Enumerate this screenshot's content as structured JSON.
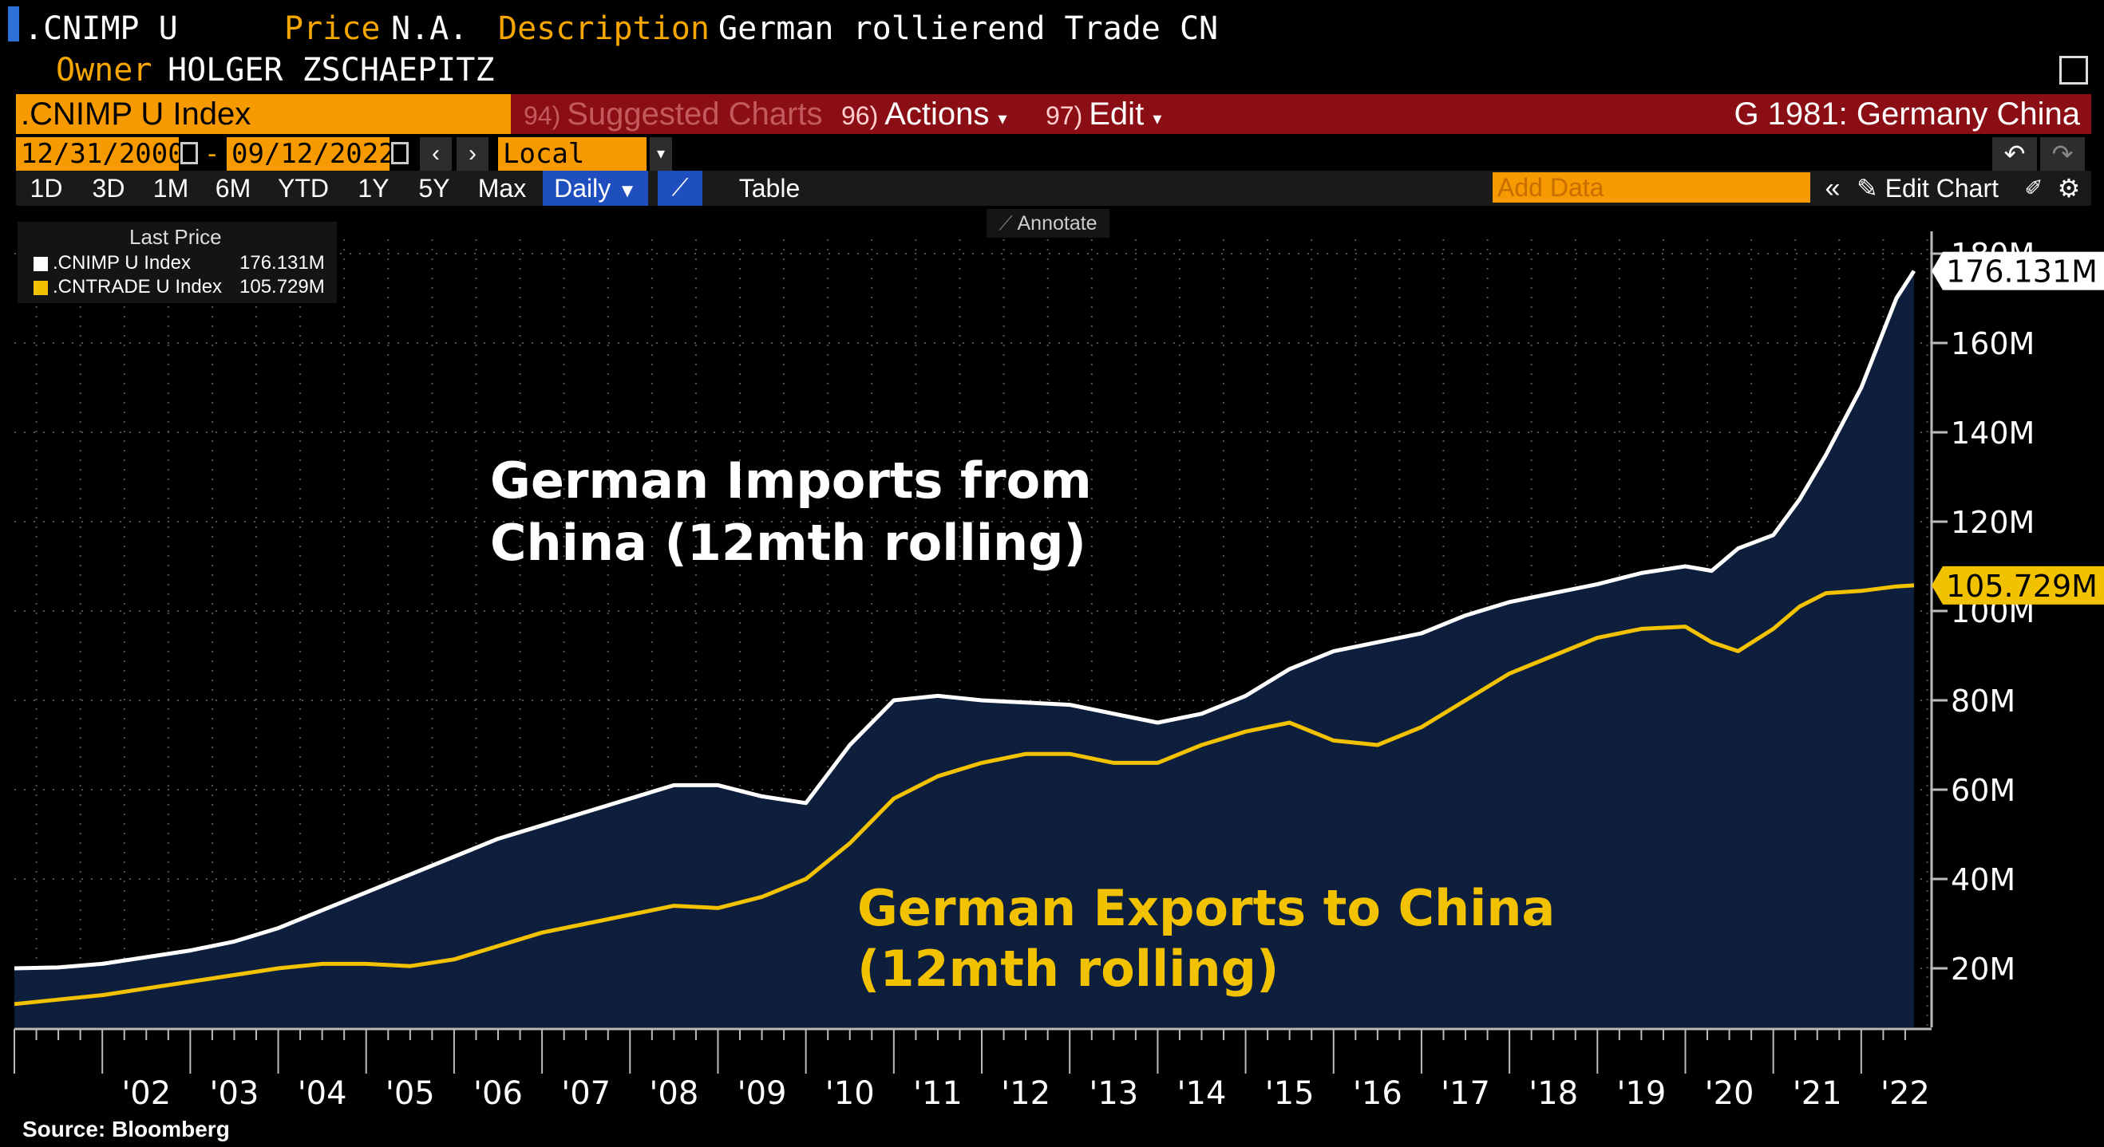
{
  "header": {
    "ticker": ".CNIMP U",
    "price_label": "Price",
    "price_value": "N.A.",
    "description_label": "Description",
    "description_value": "German rollierend Trade CN",
    "owner_label": "Owner",
    "owner_value": "HOLGER ZSCHAEPITZ"
  },
  "toolbar": {
    "security": ".CNIMP U Index",
    "suggested_num": "94)",
    "suggested_label": "Suggested Charts",
    "actions_num": "96)",
    "actions_label": "Actions",
    "edit_num": "97)",
    "edit_label": "Edit",
    "chart_name": "G 1981: Germany China",
    "start_date": "12/31/2000",
    "end_date": "09/12/2022",
    "currency": "Local CCY",
    "add_data_placeholder": "Add Data",
    "edit_chart_label": "Edit Chart",
    "table_label": "Table",
    "annotate_label": "Annotate",
    "periods": [
      "1D",
      "3D",
      "1M",
      "6M",
      "YTD",
      "1Y",
      "5Y",
      "Max"
    ],
    "frequency": "Daily"
  },
  "colors": {
    "accent": "#f79a00",
    "menu_bar": "#8b0e14",
    "area_fill": "#0d1f3c",
    "import_line": "#ffffff",
    "export_line": "#f2c200"
  },
  "legend": {
    "title": "Last Price",
    "items": [
      {
        "name": ".CNIMP U Index",
        "value": "176.131M"
      },
      {
        "name": ".CNTRADE U Index",
        "value": "105.729M"
      }
    ]
  },
  "chart_data": {
    "type": "area",
    "title": "",
    "xlabel": "",
    "ylabel": "",
    "xlim": [
      2001.0,
      2022.8
    ],
    "ylim": [
      0,
      180
    ],
    "y_ticks": [
      20,
      40,
      60,
      80,
      100,
      120,
      140,
      160,
      180
    ],
    "y_tick_labels": [
      "20M",
      "40M",
      "60M",
      "80M",
      "100M",
      "120M",
      "140M",
      "160M",
      "180M"
    ],
    "x_ticks": [
      2002,
      2003,
      2004,
      2005,
      2006,
      2007,
      2008,
      2009,
      2010,
      2011,
      2012,
      2013,
      2014,
      2015,
      2016,
      2017,
      2018,
      2019,
      2020,
      2021,
      2022
    ],
    "x_tick_labels": [
      "'02",
      "'03",
      "'04",
      "'05",
      "'06",
      "'07",
      "'08",
      "'09",
      "'10",
      "'11",
      "'12",
      "'13",
      "'14",
      "'15",
      "'16",
      "'17",
      "'18",
      "'19",
      "'20",
      "'21",
      "'22"
    ],
    "grid": true,
    "source": "Source: Bloomberg",
    "series": [
      {
        "name": ".CNIMP U Index",
        "annotation_line1": "German Imports from",
        "annotation_line2": "China (12mth rolling)",
        "last_label": "176.131M",
        "x": [
          2001.0,
          2001.5,
          2002.0,
          2002.5,
          2003.0,
          2003.5,
          2004.0,
          2004.5,
          2005.0,
          2005.5,
          2006.0,
          2006.5,
          2007.0,
          2007.5,
          2008.0,
          2008.5,
          2009.0,
          2009.5,
          2010.0,
          2010.5,
          2011.0,
          2011.5,
          2012.0,
          2012.5,
          2013.0,
          2013.5,
          2014.0,
          2014.5,
          2015.0,
          2015.5,
          2016.0,
          2016.5,
          2017.0,
          2017.5,
          2018.0,
          2018.5,
          2019.0,
          2019.5,
          2020.0,
          2020.3,
          2020.6,
          2021.0,
          2021.3,
          2021.6,
          2022.0,
          2022.4,
          2022.6
        ],
        "y": [
          20.0,
          20.2,
          21.0,
          22.5,
          24.0,
          26.0,
          29.0,
          33.0,
          37.0,
          41.0,
          45.0,
          49.0,
          52.0,
          55.0,
          58.0,
          61.0,
          61.0,
          58.5,
          57.0,
          70.0,
          80.0,
          81.0,
          80.0,
          79.5,
          79.0,
          77.0,
          75.0,
          77.0,
          81.0,
          87.0,
          91.0,
          93.0,
          95.0,
          99.0,
          102.0,
          104.0,
          106.0,
          108.5,
          110.0,
          109.0,
          114.0,
          117.0,
          125.0,
          135.0,
          150.0,
          170.0,
          176.131
        ]
      },
      {
        "name": ".CNTRADE U Index",
        "annotation_line1": "German Exports to China",
        "annotation_line2": "(12mth rolling)",
        "last_label": "105.729M",
        "x": [
          2001.0,
          2001.5,
          2002.0,
          2002.5,
          2003.0,
          2003.5,
          2004.0,
          2004.5,
          2005.0,
          2005.5,
          2006.0,
          2006.5,
          2007.0,
          2007.5,
          2008.0,
          2008.5,
          2009.0,
          2009.5,
          2010.0,
          2010.5,
          2011.0,
          2011.5,
          2012.0,
          2012.5,
          2013.0,
          2013.5,
          2014.0,
          2014.5,
          2015.0,
          2015.5,
          2016.0,
          2016.5,
          2017.0,
          2017.5,
          2018.0,
          2018.5,
          2019.0,
          2019.5,
          2020.0,
          2020.3,
          2020.6,
          2021.0,
          2021.3,
          2021.6,
          2022.0,
          2022.4,
          2022.6
        ],
        "y": [
          12.0,
          13.0,
          14.0,
          15.5,
          17.0,
          18.5,
          20.0,
          21.0,
          21.0,
          20.5,
          22.0,
          25.0,
          28.0,
          30.0,
          32.0,
          34.0,
          33.5,
          36.0,
          40.0,
          48.0,
          58.0,
          63.0,
          66.0,
          68.0,
          68.0,
          66.0,
          66.0,
          70.0,
          73.0,
          75.0,
          71.0,
          70.0,
          74.0,
          80.0,
          86.0,
          90.0,
          94.0,
          96.0,
          96.5,
          93.0,
          91.0,
          96.0,
          101.0,
          104.0,
          104.5,
          105.5,
          105.729
        ]
      }
    ]
  }
}
